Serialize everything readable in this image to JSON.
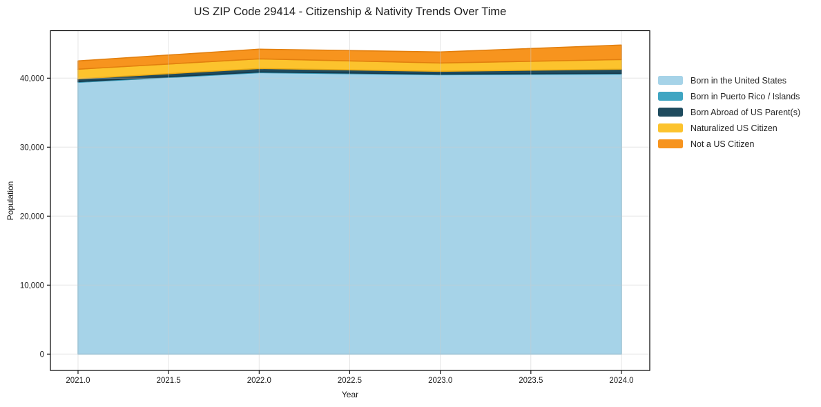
{
  "title": "US ZIP Code 29414 - Citizenship & Nativity Trends Over Time",
  "chart_data": {
    "type": "area",
    "stacked": true,
    "title": "US ZIP Code 29414 - Citizenship & Nativity Trends Over Time",
    "xlabel": "Year",
    "ylabel": "Population",
    "x": [
      2021,
      2022,
      2023,
      2024
    ],
    "series": [
      {
        "name": "Born in the United States",
        "color": "#A6D3E8",
        "edge": "#8FC3DC",
        "values": [
          39400,
          40800,
          40500,
          40600
        ]
      },
      {
        "name": "Born in Puerto Rico / Islands",
        "color": "#3FA5C2",
        "edge": "#3493B0",
        "values": [
          100,
          100,
          100,
          100
        ]
      },
      {
        "name": "Born Abroad of US Parent(s)",
        "color": "#1F4B5E",
        "edge": "#16394A",
        "values": [
          400,
          500,
          400,
          600
        ]
      },
      {
        "name": "Naturalized US Citizen",
        "color": "#FCC32D",
        "edge": "#EBAA14",
        "values": [
          1400,
          1400,
          1200,
          1400
        ]
      },
      {
        "name": "Not a US Citizen",
        "color": "#F7941E",
        "edge": "#E27F0E",
        "values": [
          1200,
          1400,
          1600,
          2100
        ]
      }
    ],
    "x_tick_labels": [
      "2021.0",
      "2021.5",
      "2022.0",
      "2022.5",
      "2023.0",
      "2023.5",
      "2024.0"
    ],
    "x_ticks": [
      2021.0,
      2021.5,
      2022.0,
      2022.5,
      2023.0,
      2023.5,
      2024.0
    ],
    "y_tick_labels": [
      "0",
      "10,000",
      "20,000",
      "30,000",
      "40,000"
    ],
    "y_ticks": [
      0,
      10000,
      20000,
      30000,
      40000
    ],
    "xlim": [
      2020.85,
      2024.15
    ],
    "ylim": [
      -2400,
      46900
    ],
    "grid": true,
    "legend_position": "right"
  }
}
